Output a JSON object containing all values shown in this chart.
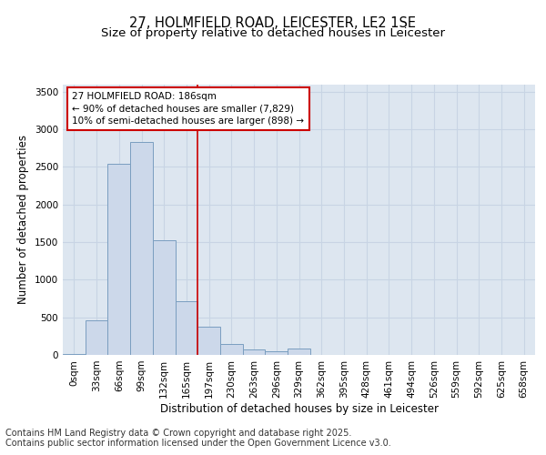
{
  "title_line1": "27, HOLMFIELD ROAD, LEICESTER, LE2 1SE",
  "title_line2": "Size of property relative to detached houses in Leicester",
  "xlabel": "Distribution of detached houses by size in Leicester",
  "ylabel": "Number of detached properties",
  "categories": [
    "0sqm",
    "33sqm",
    "66sqm",
    "99sqm",
    "132sqm",
    "165sqm",
    "197sqm",
    "230sqm",
    "263sqm",
    "296sqm",
    "329sqm",
    "362sqm",
    "395sqm",
    "428sqm",
    "461sqm",
    "494sqm",
    "526sqm",
    "559sqm",
    "592sqm",
    "625sqm",
    "658sqm"
  ],
  "values": [
    15,
    460,
    2540,
    2830,
    1530,
    710,
    370,
    150,
    70,
    50,
    80,
    5,
    5,
    5,
    5,
    5,
    5,
    5,
    5,
    5,
    5
  ],
  "bar_color": "#ccd8ea",
  "bar_edge_color": "#7a9ec0",
  "vline_color": "#cc0000",
  "vline_x": 5.5,
  "annotation_text": "27 HOLMFIELD ROAD: 186sqm\n← 90% of detached houses are smaller (7,829)\n10% of semi-detached houses are larger (898) →",
  "annotation_box_facecolor": "#ffffff",
  "annotation_box_edgecolor": "#cc0000",
  "ylim": [
    0,
    3600
  ],
  "yticks": [
    0,
    500,
    1000,
    1500,
    2000,
    2500,
    3000,
    3500
  ],
  "grid_color": "#c8d4e4",
  "bg_color": "#dde6f0",
  "footer_line1": "Contains HM Land Registry data © Crown copyright and database right 2025.",
  "footer_line2": "Contains public sector information licensed under the Open Government Licence v3.0.",
  "title_fontsize": 10.5,
  "subtitle_fontsize": 9.5,
  "axis_label_fontsize": 8.5,
  "tick_fontsize": 7.5,
  "annotation_fontsize": 7.5,
  "footer_fontsize": 7
}
